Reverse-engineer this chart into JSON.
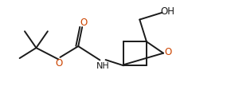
{
  "bg_color": "#ffffff",
  "line_color": "#1a1a1a",
  "O_color": "#cc4400",
  "line_width": 1.4,
  "font_size": 8.5,
  "figsize": [
    2.9,
    1.23
  ],
  "dpi": 100,
  "xlim": [
    0,
    10
  ],
  "ylim": [
    0,
    4.2
  ]
}
